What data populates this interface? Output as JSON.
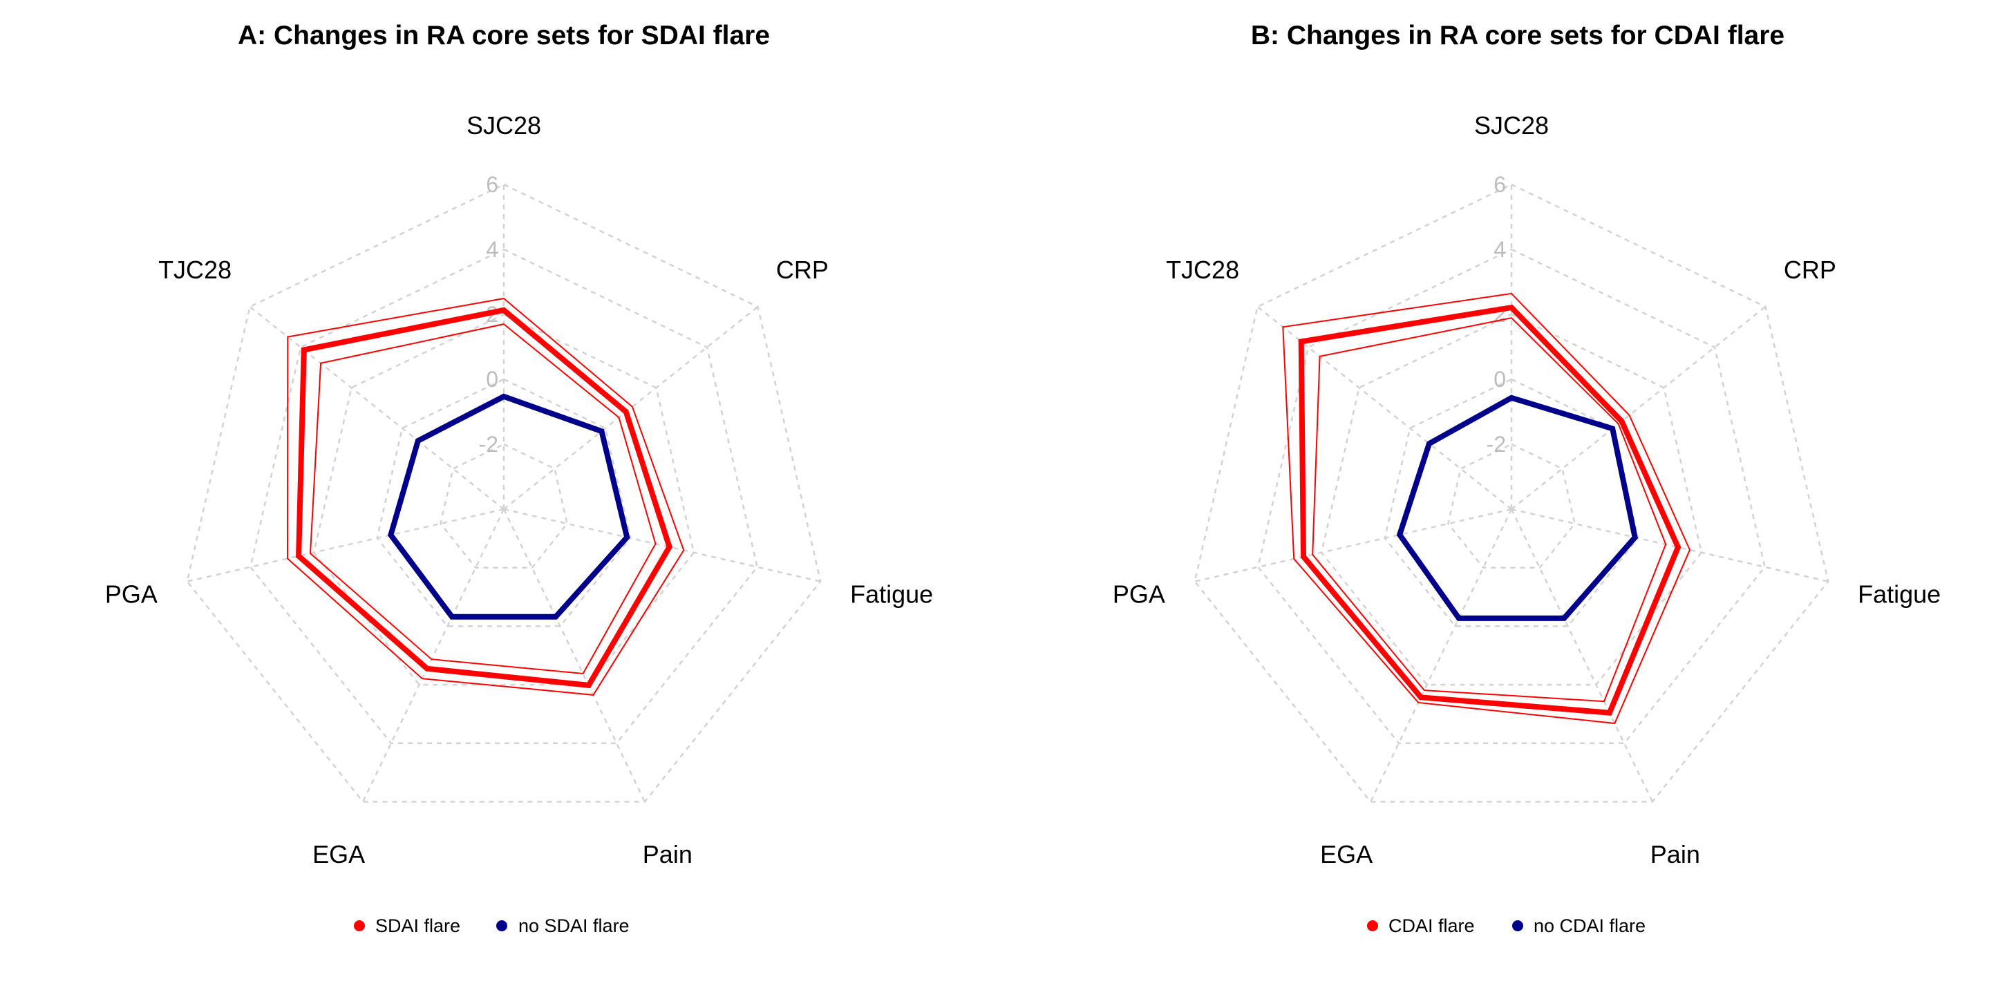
{
  "chart_data": [
    {
      "type": "radar",
      "title": "A: Changes in RA core sets for SDAI flare",
      "axes": [
        "SJC28",
        "CRP",
        "Fatigue",
        "Pain",
        "EGA",
        "PGA",
        "TJC28"
      ],
      "rlim": [
        -4,
        6
      ],
      "ticks": [
        "-2",
        "0",
        "2",
        "4",
        "6"
      ],
      "tick_values": [
        -2,
        0,
        2,
        4,
        6
      ],
      "grid": true,
      "legend_position": "bottom",
      "series": [
        {
          "name": "SDAI flare",
          "color": "#ff0000",
          "values": [
            2.13,
            0.81,
            1.23,
            2.02,
            1.45,
            2.48,
            3.87
          ],
          "upper": [
            2.49,
            1.06,
            1.68,
            2.35,
            1.79,
            2.83,
            4.51
          ],
          "lower": [
            1.7,
            0.53,
            0.79,
            1.62,
            1.13,
            2.11,
            3.21
          ]
        },
        {
          "name": "no SDAI flare",
          "color": "#00008b",
          "values": [
            -0.53,
            -0.15,
            -0.11,
            -0.32,
            -0.32,
            -0.43,
            -0.62
          ],
          "upper": [
            -0.48,
            -0.12,
            -0.08,
            -0.29,
            -0.29,
            -0.38,
            -0.56
          ],
          "lower": [
            -0.58,
            -0.18,
            -0.14,
            -0.35,
            -0.35,
            -0.48,
            -0.68
          ]
        }
      ]
    },
    {
      "type": "radar",
      "title": "B: Changes in RA core sets for CDAI flare",
      "axes": [
        "SJC28",
        "CRP",
        "Fatigue",
        "Pain",
        "EGA",
        "PGA",
        "TJC28"
      ],
      "rlim": [
        -4,
        6
      ],
      "ticks": [
        "-2",
        "0",
        "2",
        "4",
        "6"
      ],
      "tick_values": [
        -2,
        0,
        2,
        4,
        6
      ],
      "grid": true,
      "legend_position": "bottom",
      "series": [
        {
          "name": "CDAI flare",
          "color": "#ff0000",
          "values": [
            2.21,
            0.34,
            1.26,
            2.96,
            2.43,
            2.57,
            4.28
          ],
          "upper": [
            2.64,
            0.64,
            1.63,
            3.32,
            2.61,
            2.87,
            5.0
          ],
          "lower": [
            1.89,
            0.21,
            0.87,
            2.57,
            2.19,
            2.28,
            3.55
          ]
        },
        {
          "name": "no CDAI flare",
          "color": "#00008b",
          "values": [
            -0.57,
            -0.02,
            -0.1,
            -0.27,
            -0.27,
            -0.47,
            -0.76
          ],
          "upper": [
            -0.52,
            0.01,
            -0.07,
            -0.24,
            -0.24,
            -0.42,
            -0.7
          ],
          "lower": [
            -0.62,
            -0.05,
            -0.13,
            -0.3,
            -0.3,
            -0.52,
            -0.82
          ]
        }
      ]
    }
  ]
}
